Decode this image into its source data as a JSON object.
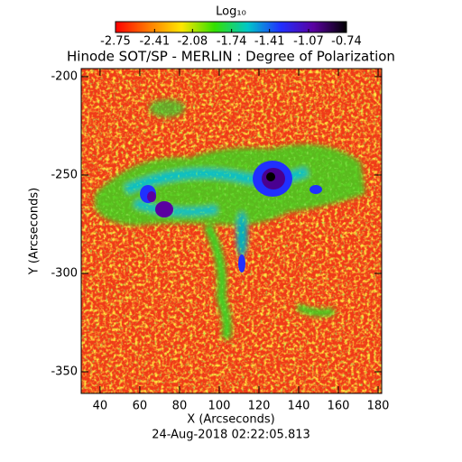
{
  "chart_data": {
    "type": "heatmap",
    "title": "Hinode SOT/SP - MERLIN : Degree of Polarization",
    "x_label": "X (Arcseconds)",
    "y_label": "Y (Arcseconds)",
    "footer": "24-Aug-2018 02:22:05.813",
    "xlim": [
      30.5,
      181.8
    ],
    "xticks": [
      40,
      60,
      80,
      100,
      120,
      140,
      160,
      180
    ],
    "ylim": [
      -361,
      -195.9
    ],
    "yticks": [
      -200,
      -250,
      -300,
      -350
    ],
    "colorbar": {
      "title": "Log₁₀",
      "lim": [
        -2.75,
        -0.74
      ],
      "ticks": [
        -2.75,
        -2.41,
        -2.08,
        -1.74,
        -1.41,
        -1.07,
        -0.74
      ],
      "colormap": [
        "#ff0000",
        "#ff7a00",
        "#ffe600",
        "#33e000",
        "#00c8c8",
        "#2030ff",
        "#5a00a0",
        "#000000"
      ]
    }
  }
}
